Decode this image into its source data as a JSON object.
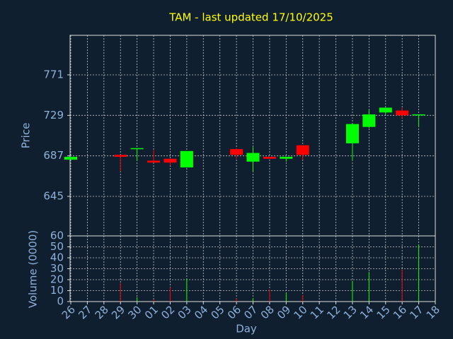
{
  "chart_data": [
    {
      "type": "candlestick",
      "title": "TAM - last updated 17/10/2025",
      "ylabel": "Price",
      "ylim": [
        604,
        812
      ],
      "yticks": [
        645,
        687,
        729,
        771
      ],
      "grid": true,
      "up_color": "#00ff00",
      "down_color": "#ff0000",
      "open": [
        683,
        null,
        null,
        688,
        694,
        682,
        684,
        675,
        null,
        null,
        694,
        681,
        686,
        684,
        698,
        null,
        null,
        700,
        717,
        732,
        734,
        729,
        null
      ],
      "high": [
        686,
        null,
        null,
        688,
        695,
        693,
        684,
        692,
        null,
        null,
        695,
        696,
        686,
        686,
        698,
        null,
        null,
        720,
        735,
        737,
        737,
        730,
        null
      ],
      "low": [
        683,
        null,
        null,
        671,
        682,
        680,
        677,
        675,
        null,
        null,
        684,
        671,
        684,
        681,
        683,
        null,
        null,
        682,
        716,
        730,
        726,
        717,
        null
      ],
      "close": [
        686,
        null,
        null,
        686,
        695,
        680,
        680,
        692,
        null,
        null,
        688,
        690,
        684,
        686,
        688,
        null,
        null,
        720,
        730,
        737,
        729,
        730,
        null
      ]
    },
    {
      "type": "bar",
      "xlabel": "Day",
      "ylabel": "Volume (0000)",
      "ylim": [
        0,
        60
      ],
      "yticks": [
        0,
        10,
        20,
        30,
        40,
        50,
        60
      ],
      "grid": true,
      "categories": [
        "26",
        "27",
        "28",
        "29",
        "30",
        "01",
        "02",
        "03",
        "04",
        "05",
        "06",
        "07",
        "08",
        "09",
        "10",
        "11",
        "12",
        "13",
        "14",
        "15",
        "16",
        "17",
        "18"
      ],
      "values": [
        0,
        null,
        null,
        17,
        4,
        2,
        13,
        21,
        null,
        null,
        3,
        3,
        11,
        8,
        6,
        null,
        null,
        19,
        27,
        0,
        29,
        52,
        null
      ]
    }
  ]
}
